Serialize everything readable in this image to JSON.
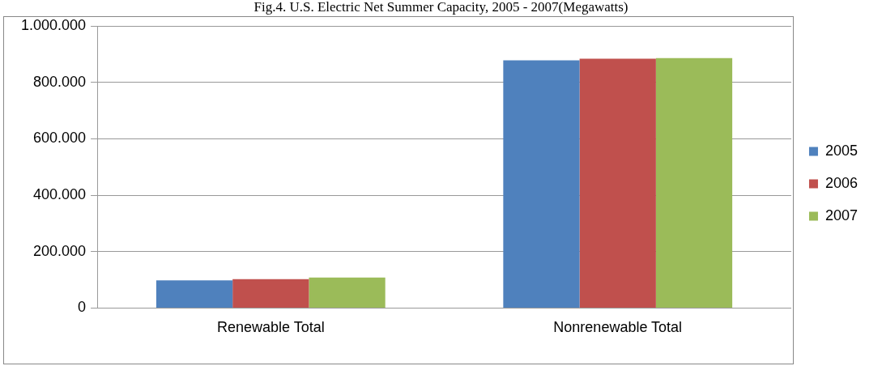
{
  "chart_data": {
    "type": "bar",
    "title": "Fig.4.  U.S. Electric Net Summer Capacity, 2005 - 2007(Megawatts)",
    "categories": [
      "Renewable Total",
      "Nonrenewable Total"
    ],
    "series": [
      {
        "name": "2005",
        "color": "#4f81bd",
        "values": [
          98000,
          878000
        ]
      },
      {
        "name": "2006",
        "color": "#c0504d",
        "values": [
          102000,
          884000
        ]
      },
      {
        "name": "2007",
        "color": "#9bbb59",
        "values": [
          108000,
          886000
        ]
      }
    ],
    "ylim": [
      0,
      1000000
    ],
    "yticks": [
      {
        "value": 0,
        "label": "0"
      },
      {
        "value": 200000,
        "label": "200.000"
      },
      {
        "value": 400000,
        "label": "400.000"
      },
      {
        "value": 600000,
        "label": "600.000"
      },
      {
        "value": 800000,
        "label": "800.000"
      },
      {
        "value": 1000000,
        "label": "1.000.000"
      }
    ],
    "grid": "y",
    "legend": "right"
  }
}
